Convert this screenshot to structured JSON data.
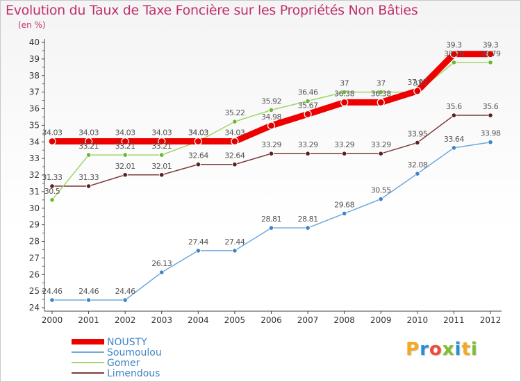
{
  "title": "Evolution du Taux de Taxe Foncière sur les Propriétés Non Bâties",
  "subtitle": "(en %)",
  "logo": {
    "text": "Proxiti",
    "colors": [
      "#f7a823",
      "#2a8fd6",
      "#f04a3a",
      "#7dbf2f",
      "#2a8fd6",
      "#f7a823",
      "#7dbf2f"
    ]
  },
  "chart_data": {
    "type": "line",
    "title": "Evolution du Taux de Taxe Foncière sur les Propriétés Non Bâties",
    "ylabel": "(en %)",
    "xlabel": "",
    "ylim": [
      24,
      40
    ],
    "yticks": [
      24,
      25,
      26,
      27,
      28,
      29,
      30,
      31,
      32,
      33,
      34,
      35,
      36,
      37,
      38,
      39,
      40
    ],
    "x": [
      "2000",
      "2001",
      "2002",
      "2003",
      "2004",
      "2005",
      "2006",
      "2007",
      "2008",
      "2009",
      "2010",
      "2011",
      "2012"
    ],
    "grid": false,
    "legend": "bottom-left",
    "series": [
      {
        "name": "NOUSTY",
        "color": "#ee0000",
        "marker": "#dd0000",
        "bold": true,
        "values": [
          34.03,
          34.03,
          34.03,
          34.03,
          34.03,
          34.03,
          34.98,
          35.67,
          36.38,
          36.38,
          37.07,
          39.3,
          39.3
        ],
        "labels": [
          "34.03",
          "34.03",
          "34.03",
          "34.03",
          "34.03",
          "34.03",
          "34.98",
          "35.67",
          "36.38",
          "36.38",
          "37.07",
          "39.3",
          "39.3"
        ]
      },
      {
        "name": "Soumoulou",
        "color": "#6fa8dc",
        "marker": "#3d85c6",
        "values": [
          24.46,
          24.46,
          24.46,
          26.13,
          27.44,
          27.44,
          28.81,
          28.81,
          29.68,
          30.55,
          32.08,
          33.64,
          33.98
        ],
        "labels": [
          "24.46",
          "24.46",
          "24.46",
          "26.13",
          "27.44",
          "27.44",
          "28.81",
          "28.81",
          "29.68",
          "30.55",
          "32.08",
          "33.64",
          "33.98"
        ]
      },
      {
        "name": "Gomer",
        "color": "#9ed56b",
        "marker": "#6ab82e",
        "values": [
          30.5,
          33.21,
          33.21,
          33.21,
          34.03,
          35.22,
          35.92,
          36.46,
          37.0,
          37.0,
          37.0,
          38.79,
          38.79
        ],
        "labels": [
          "30.5",
          "33.21",
          "33.21",
          "33.21",
          "34.03",
          "35.22",
          "35.92",
          "36.46",
          "37",
          "37",
          "37",
          "38.79",
          "38.79"
        ]
      },
      {
        "name": "Limendous",
        "color": "#7a3b3b",
        "marker": "#5a1f1f",
        "values": [
          31.33,
          31.33,
          32.01,
          32.01,
          32.64,
          32.64,
          33.29,
          33.29,
          33.29,
          33.29,
          33.95,
          35.6,
          35.6
        ],
        "labels": [
          "31.33",
          "31.33",
          "32.01",
          "32.01",
          "32.64",
          "32.64",
          "33.29",
          "33.29",
          "33.29",
          "33.29",
          "33.95",
          "35.6",
          "35.6"
        ]
      }
    ]
  }
}
